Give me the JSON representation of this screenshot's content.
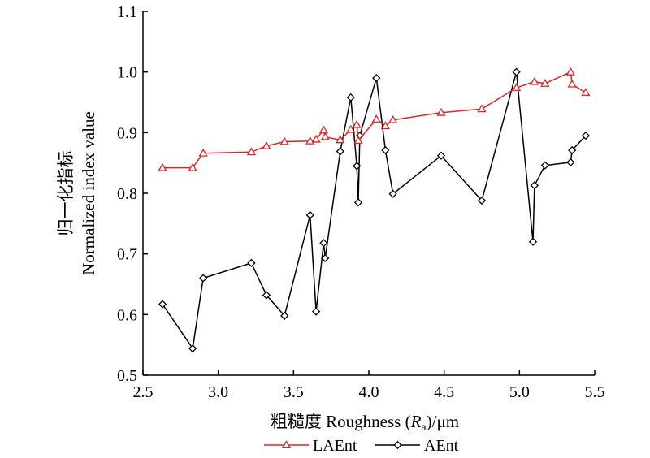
{
  "chart_data": {
    "type": "line",
    "xlabel": "粗糙度 Roughness (Ra)/μm",
    "xlabel_parts": {
      "prefix": "粗糙度 Roughness (",
      "var": "R",
      "sub": "a",
      "suffix": ")/μm"
    },
    "ylabel_cn": "归一化指标",
    "ylabel_en": "Normalized index value",
    "xlim": [
      2.5,
      5.5
    ],
    "ylim": [
      0.5,
      1.1
    ],
    "xticks": [
      "2.5",
      "3.0",
      "3.5",
      "4.0",
      "4.5",
      "5.0",
      "5.5"
    ],
    "yticks": [
      "0.5",
      "0.6",
      "0.7",
      "0.8",
      "0.9",
      "1.0",
      "1.1"
    ],
    "grid": false,
    "legend_position": "bottom",
    "series": [
      {
        "name": "LAEnt",
        "color": "#d62728",
        "marker": "triangle",
        "x": [
          2.63,
          2.83,
          2.9,
          3.22,
          3.32,
          3.44,
          3.61,
          3.65,
          3.7,
          3.71,
          3.81,
          3.88,
          3.92,
          3.93,
          4.05,
          4.11,
          4.16,
          4.48,
          4.75,
          4.98,
          5.1,
          5.17,
          5.34,
          5.35,
          5.44
        ],
        "y": [
          0.842,
          0.842,
          0.866,
          0.868,
          0.878,
          0.885,
          0.886,
          0.889,
          0.904,
          0.893,
          0.888,
          0.905,
          0.913,
          0.887,
          0.922,
          0.911,
          0.921,
          0.933,
          0.939,
          0.974,
          0.984,
          0.981,
          1.0,
          0.98,
          0.966
        ]
      },
      {
        "name": "AEnt",
        "color": "#000000",
        "marker": "diamond",
        "x": [
          2.63,
          2.83,
          2.9,
          3.22,
          3.32,
          3.44,
          3.61,
          3.65,
          3.7,
          3.71,
          3.81,
          3.88,
          3.92,
          3.93,
          3.94,
          4.05,
          4.11,
          4.16,
          4.48,
          4.75,
          4.98,
          5.09,
          5.1,
          5.17,
          5.34,
          5.35,
          5.44
        ],
        "y": [
          0.617,
          0.544,
          0.66,
          0.685,
          0.632,
          0.598,
          0.764,
          0.605,
          0.718,
          0.693,
          0.869,
          0.958,
          0.845,
          0.785,
          0.895,
          0.99,
          0.871,
          0.799,
          0.862,
          0.788,
          1.0,
          0.72,
          0.813,
          0.846,
          0.851,
          0.871,
          0.895
        ]
      }
    ]
  }
}
